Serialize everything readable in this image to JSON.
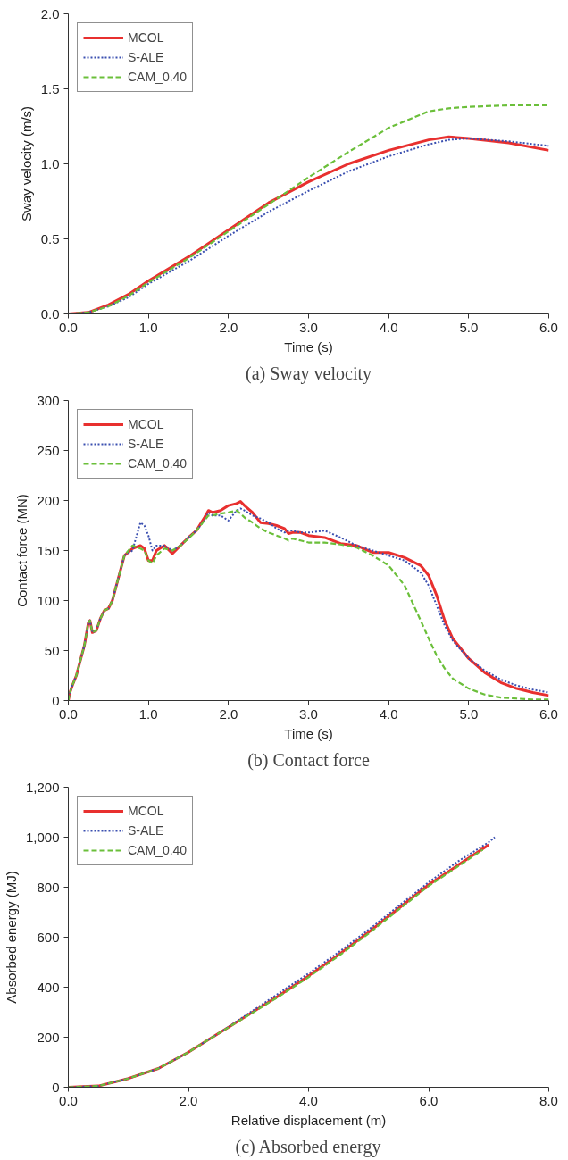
{
  "chart_data": [
    {
      "type": "line",
      "title": "(a) Sway velocity",
      "xlabel": "Time (s)",
      "ylabel": "Sway velocity (m/s)",
      "xlim": [
        0,
        6
      ],
      "ylim": [
        0,
        2
      ],
      "xticks": [
        {
          "value": 0,
          "label": "0.0"
        },
        {
          "value": 1,
          "label": "1.0"
        },
        {
          "value": 2,
          "label": "2.0"
        },
        {
          "value": 3,
          "label": "3.0"
        },
        {
          "value": 4,
          "label": "4.0"
        },
        {
          "value": 5,
          "label": "5.0"
        },
        {
          "value": 6,
          "label": "6.0"
        }
      ],
      "yticks": [
        {
          "value": 0,
          "label": "0.0"
        },
        0.5,
        {
          "value": 1,
          "label": "1.0"
        },
        1.5,
        {
          "value": 2,
          "label": "2.0"
        }
      ],
      "grid": false,
      "legend": "top left",
      "x": [
        0,
        0.25,
        0.5,
        0.75,
        1,
        1.5,
        2,
        2.5,
        3,
        3.5,
        4,
        4.5,
        4.75,
        5,
        5.5,
        6
      ],
      "series": [
        {
          "name": "MCOL",
          "color": "#e8302f",
          "line_style": "solid",
          "values": [
            0,
            0.01,
            0.06,
            0.13,
            0.22,
            0.38,
            0.56,
            0.74,
            0.88,
            1.0,
            1.09,
            1.16,
            1.18,
            1.17,
            1.14,
            1.09
          ]
        },
        {
          "name": "S-ALE",
          "color": "#3a4fb0",
          "line_style": "dotted",
          "values": [
            0,
            0.01,
            0.05,
            0.11,
            0.2,
            0.35,
            0.52,
            0.68,
            0.82,
            0.95,
            1.05,
            1.13,
            1.16,
            1.17,
            1.15,
            1.12
          ]
        },
        {
          "name": "CAM_0.40",
          "color": "#6bbf3a",
          "line_style": "dashed",
          "values": [
            0,
            0.01,
            0.05,
            0.12,
            0.21,
            0.37,
            0.55,
            0.73,
            0.91,
            1.08,
            1.24,
            1.35,
            1.37,
            1.38,
            1.39,
            1.39
          ]
        }
      ]
    },
    {
      "type": "line",
      "title": "(b) Contact force",
      "xlabel": "Time (s)",
      "ylabel": "Contact force (MN)",
      "xlim": [
        0,
        6
      ],
      "ylim": [
        0,
        300
      ],
      "xticks": [
        {
          "value": 0,
          "label": "0.0"
        },
        {
          "value": 1,
          "label": "1.0"
        },
        {
          "value": 2,
          "label": "2.0"
        },
        {
          "value": 3,
          "label": "3.0"
        },
        {
          "value": 4,
          "label": "4.0"
        },
        {
          "value": 5,
          "label": "5.0"
        },
        {
          "value": 6,
          "label": "6.0"
        }
      ],
      "yticks": [
        0,
        50,
        100,
        150,
        200,
        250,
        300
      ],
      "grid": false,
      "legend": "top left",
      "x": [
        0,
        0.02,
        0.05,
        0.1,
        0.15,
        0.2,
        0.25,
        0.27,
        0.3,
        0.35,
        0.4,
        0.45,
        0.5,
        0.55,
        0.6,
        0.7,
        0.8,
        0.9,
        0.95,
        1.0,
        1.05,
        1.1,
        1.2,
        1.3,
        1.4,
        1.5,
        1.6,
        1.7,
        1.75,
        1.8,
        1.9,
        2.0,
        2.1,
        2.15,
        2.2,
        2.3,
        2.4,
        2.5,
        2.6,
        2.7,
        2.75,
        2.8,
        2.9,
        3.0,
        3.2,
        3.4,
        3.6,
        3.8,
        4.0,
        4.2,
        4.4,
        4.5,
        4.6,
        4.7,
        4.8,
        5.0,
        5.2,
        5.4,
        5.6,
        5.8,
        6.0
      ],
      "series": [
        {
          "name": "MCOL",
          "color": "#e8302f",
          "line_style": "solid",
          "values": [
            0,
            8,
            15,
            25,
            40,
            55,
            78,
            80,
            68,
            70,
            82,
            90,
            92,
            100,
            115,
            145,
            152,
            155,
            152,
            140,
            140,
            150,
            155,
            147,
            155,
            163,
            170,
            183,
            190,
            188,
            190,
            195,
            197,
            199,
            195,
            188,
            178,
            177,
            175,
            172,
            167,
            168,
            168,
            165,
            163,
            157,
            155,
            148,
            148,
            143,
            135,
            125,
            105,
            80,
            62,
            42,
            28,
            18,
            12,
            8,
            5
          ]
        },
        {
          "name": "S-ALE",
          "color": "#3a4fb0",
          "line_style": "dotted",
          "values": [
            0,
            8,
            15,
            25,
            40,
            55,
            78,
            80,
            68,
            70,
            82,
            90,
            92,
            100,
            115,
            145,
            150,
            178,
            175,
            165,
            150,
            155,
            155,
            150,
            155,
            163,
            170,
            180,
            188,
            185,
            185,
            180,
            190,
            192,
            190,
            185,
            182,
            178,
            172,
            168,
            170,
            170,
            168,
            168,
            170,
            163,
            155,
            150,
            145,
            140,
            128,
            115,
            95,
            75,
            60,
            42,
            30,
            21,
            15,
            11,
            8
          ]
        },
        {
          "name": "CAM_0.40",
          "color": "#6bbf3a",
          "line_style": "dashed",
          "values": [
            0,
            8,
            15,
            25,
            40,
            55,
            78,
            80,
            68,
            70,
            82,
            90,
            92,
            100,
            115,
            145,
            155,
            152,
            150,
            140,
            137,
            145,
            152,
            150,
            155,
            162,
            170,
            180,
            185,
            185,
            187,
            188,
            190,
            187,
            183,
            178,
            172,
            168,
            165,
            162,
            160,
            162,
            160,
            158,
            158,
            156,
            153,
            145,
            135,
            115,
            80,
            62,
            45,
            32,
            22,
            12,
            6,
            3,
            2,
            1,
            1
          ]
        }
      ]
    },
    {
      "type": "line",
      "title": "(c) Absorbed energy",
      "xlabel": "Relative displacement (m)",
      "ylabel": "Absorbed energy (MJ)",
      "xlim": [
        0,
        8
      ],
      "ylim": [
        0,
        1200
      ],
      "xticks": [
        {
          "value": 0,
          "label": "0.0"
        },
        {
          "value": 2,
          "label": "2.0"
        },
        {
          "value": 4,
          "label": "4.0"
        },
        {
          "value": 6,
          "label": "6.0"
        },
        {
          "value": 8,
          "label": "8.0"
        }
      ],
      "yticks": [
        0,
        200,
        400,
        600,
        800,
        {
          "value": 1000,
          "label": "1,000"
        },
        {
          "value": 1200,
          "label": "1,200"
        }
      ],
      "grid": false,
      "legend": "top left",
      "series": [
        {
          "name": "MCOL",
          "color": "#e8302f",
          "line_style": "solid",
          "x": [
            0,
            0.5,
            1,
            1.5,
            2,
            2.5,
            3,
            3.5,
            4,
            4.5,
            5,
            5.5,
            6,
            6.5,
            7
          ],
          "values": [
            0,
            5,
            35,
            75,
            140,
            215,
            290,
            365,
            445,
            530,
            620,
            715,
            810,
            890,
            970
          ]
        },
        {
          "name": "S-ALE",
          "color": "#3a4fb0",
          "line_style": "dotted",
          "x": [
            0,
            0.5,
            1,
            1.5,
            2,
            2.5,
            3,
            3.5,
            4,
            4.5,
            5,
            5.5,
            6,
            6.5,
            7,
            7.1
          ],
          "values": [
            0,
            5,
            35,
            75,
            140,
            215,
            295,
            375,
            455,
            540,
            630,
            725,
            820,
            905,
            980,
            1000
          ]
        },
        {
          "name": "CAM_0.40",
          "color": "#6bbf3a",
          "line_style": "dashed",
          "x": [
            0,
            0.5,
            1,
            1.5,
            2,
            2.5,
            3,
            3.5,
            4,
            4.5,
            5,
            5.5,
            6,
            6.5,
            6.9
          ],
          "values": [
            0,
            5,
            35,
            75,
            140,
            215,
            288,
            362,
            440,
            525,
            615,
            710,
            805,
            885,
            950
          ]
        }
      ]
    }
  ]
}
